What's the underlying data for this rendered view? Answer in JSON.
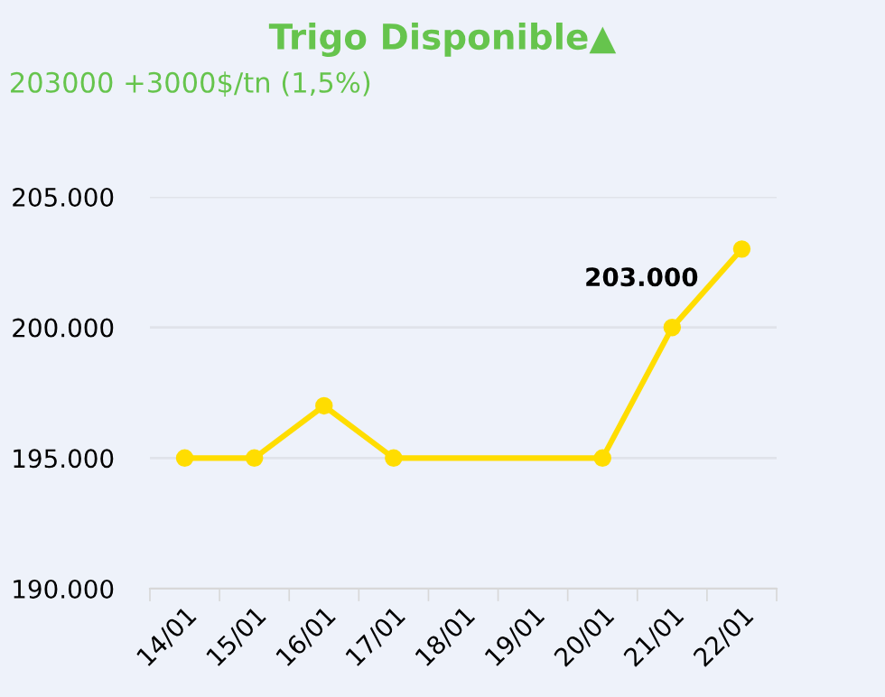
{
  "chart_data": {
    "type": "line",
    "title": "Trigo Disponible▲",
    "subtitle": "203000 +3000$/tn (1,5%)",
    "categories": [
      "14/01",
      "15/01",
      "16/01",
      "17/01",
      "18/01",
      "19/01",
      "20/01",
      "21/01",
      "22/01"
    ],
    "series": [
      {
        "color": "#ffdd00",
        "values": [
          195000,
          195000,
          197000,
          195000,
          null,
          null,
          195000,
          200000,
          203000
        ],
        "value_labels": [
          null,
          null,
          null,
          null,
          null,
          null,
          null,
          null,
          "203.000"
        ]
      }
    ],
    "ylim": [
      190000,
      205000
    ],
    "yticks": [
      {
        "value": 190000,
        "label": "190.000"
      },
      {
        "value": 195000,
        "label": "195.000"
      },
      {
        "value": 200000,
        "label": "200.000"
      },
      {
        "value": 205000,
        "label": "205.000"
      }
    ],
    "grid": "y",
    "marker": "circle",
    "line_style": "solid",
    "legend": false
  }
}
